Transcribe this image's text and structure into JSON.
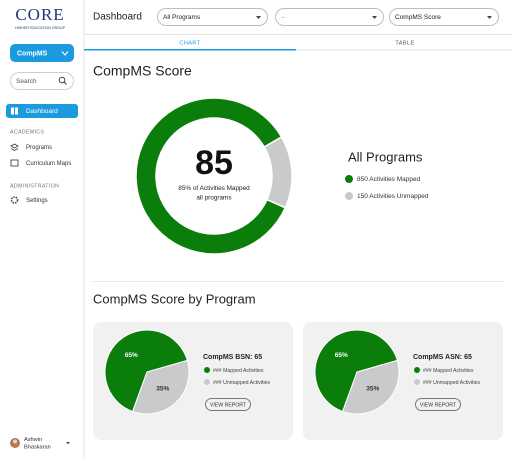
{
  "sidebar": {
    "logo": "CORE",
    "logo_subtitle": "HIGHER EDUCATION GROUP",
    "app_button": "CompMS",
    "search_placeholder": "Search",
    "active_item": "Dashboard",
    "sections": [
      {
        "heading": "ACADEMICS",
        "items": [
          "Programs",
          "Curriculum Maps"
        ]
      },
      {
        "heading": "ADMINISTRATION",
        "items": [
          "Settings"
        ]
      }
    ],
    "user": {
      "first_name": "Ashwin",
      "last_name": "Bhaskaran"
    }
  },
  "header": {
    "title": "Dashboard",
    "filters": [
      "All Programs",
      "--",
      "CompMS Score"
    ],
    "tabs": [
      "CHART",
      "TABLE"
    ]
  },
  "summary": {
    "title": "CompMS Score",
    "center_value": 85,
    "caption": "85% of Activities Mapped",
    "subcaption": "all programs",
    "legend_title": "All Programs",
    "segments": [
      {
        "label": "850 Activities Mapped",
        "value": 850,
        "color": "#0b7d0b"
      },
      {
        "label": "150 Activities Unmapped",
        "value": 150,
        "color": "#c9cacc"
      }
    ]
  },
  "programs": {
    "title": "CompMS Score by Program",
    "colors": [
      "#0b7d0b",
      "#c9cacc"
    ],
    "cards": [
      {
        "title": "CompMS BSN: 65",
        "values": [
          65,
          35
        ],
        "value_labels": [
          "65%",
          "35%"
        ],
        "legend": [
          "### Mapped Activities",
          "### Unmapped Activities"
        ],
        "button": "VIEW REPORT"
      },
      {
        "title": "CompMS ASN: 65",
        "values": [
          65,
          35
        ],
        "value_labels": [
          "65%",
          "35%"
        ],
        "legend": [
          "### Mapped Activities",
          "### Unmapped Activities"
        ],
        "button": "VIEW REPORT"
      }
    ]
  }
}
